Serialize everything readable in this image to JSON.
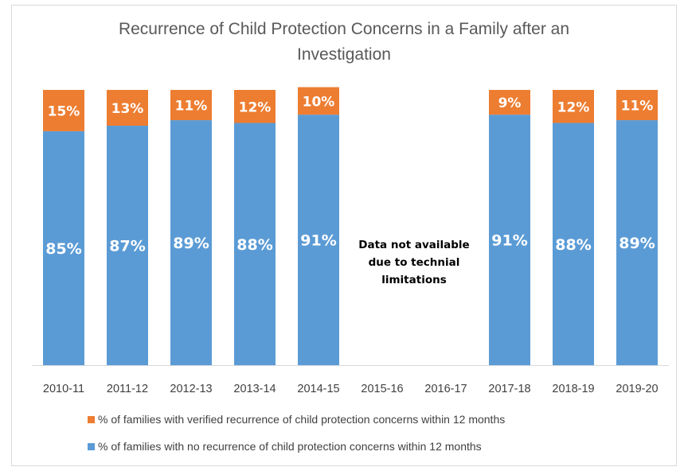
{
  "chart_data": {
    "type": "bar",
    "stacked": true,
    "title": "Recurrence of Child Protection Concerns in a Family after an Investigation",
    "title_lines": [
      "Recurrence of Child Protection Concerns in a Family after an",
      "Investigation"
    ],
    "categories": [
      "2010-11",
      "2011-12",
      "2012-13",
      "2013-14",
      "2014-15",
      "2015-16",
      "2016-17",
      "2017-18",
      "2018-19",
      "2019-20"
    ],
    "series": [
      {
        "name": "% of families with no recurrence of child protection concerns within 12 months",
        "color": "#5b9bd5",
        "values": [
          85,
          87,
          89,
          88,
          91,
          null,
          null,
          91,
          88,
          89
        ],
        "labels": [
          "85%",
          "87%",
          "89%",
          "88%",
          "91%",
          "",
          "",
          "91%",
          "88%",
          "89%"
        ]
      },
      {
        "name": "% of families with verified recurrence of child protection concerns within 12 months",
        "color": "#ed7d31",
        "values": [
          15,
          13,
          11,
          12,
          10,
          null,
          null,
          9,
          12,
          11
        ],
        "labels": [
          "15%",
          "13%",
          "11%",
          "12%",
          "10%",
          "",
          "",
          "9%",
          "12%",
          "11%"
        ]
      }
    ],
    "annotation": {
      "lines": [
        "Data not available",
        "due to technial",
        "limitations"
      ]
    },
    "ylim": [
      0,
      100
    ],
    "y_axis_shown": false,
    "grid": false,
    "legend_position": "bottom",
    "legend_order": [
      1,
      0
    ]
  }
}
